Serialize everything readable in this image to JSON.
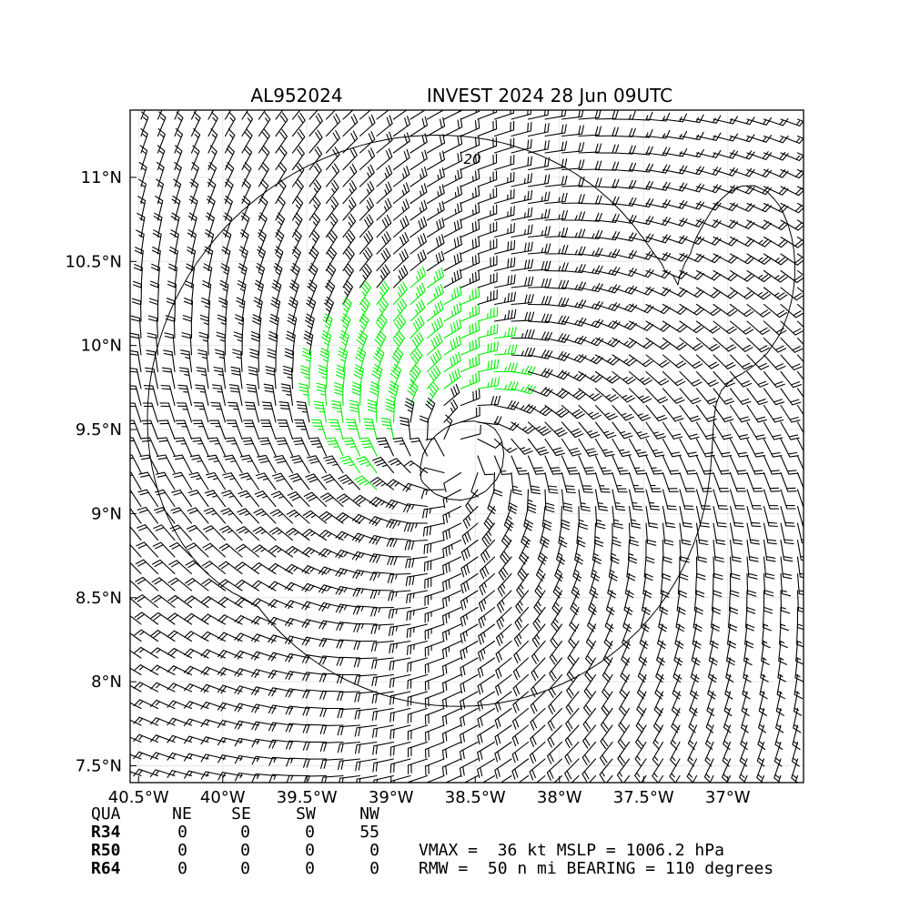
{
  "title_left": "AL952024",
  "title_right": "INVEST 2024 28 Jun 09UTC",
  "chart_data": {
    "type": "wind-barb-map",
    "colors": {
      "below_34kt": "#000000",
      "gale_34_49kt": "#00ee00",
      "storm_50_63kt": "#f0a000",
      "frame": "#000000",
      "grid": "#e6e6e6"
    },
    "xlim": [
      -40.55,
      -36.55
    ],
    "ylim": [
      7.4,
      11.4
    ],
    "xticks": [
      -40.5,
      -40,
      -39.5,
      -39,
      -38.5,
      -38,
      -37.5,
      -37
    ],
    "xtick_labels": [
      "40.5°W",
      "40°W",
      "39.5°W",
      "39°W",
      "38.5°W",
      "38°W",
      "37.5°W",
      "37°W"
    ],
    "yticks": [
      7.5,
      8,
      8.5,
      9,
      9.5,
      10,
      10.5,
      11
    ],
    "ytick_labels": [
      "7.5°N",
      "8°N",
      "8.5°N",
      "9°N",
      "9.5°N",
      "10°N",
      "10.5°N",
      "11°N"
    ],
    "grid": true,
    "center": {
      "lon": -38.6,
      "lat": 9.35
    },
    "vmax_kt": 36,
    "rmw_nmi": 50,
    "contour_label": "20"
  },
  "table": {
    "header": [
      "QUA",
      "NE",
      "SE",
      "SW",
      "NW"
    ],
    "rows": [
      {
        "label": "R34",
        "values": [
          "0",
          "0",
          "0",
          "55"
        ]
      },
      {
        "label": "R50",
        "values": [
          "0",
          "0",
          "0",
          "0"
        ]
      },
      {
        "label": "R64",
        "values": [
          "0",
          "0",
          "0",
          "0"
        ]
      }
    ]
  },
  "summary": {
    "line1": "VMAX =  36 kt MSLP = 1006.2 hPa",
    "line2": "RMW =  50 n mi BEARING = 110 degrees"
  }
}
